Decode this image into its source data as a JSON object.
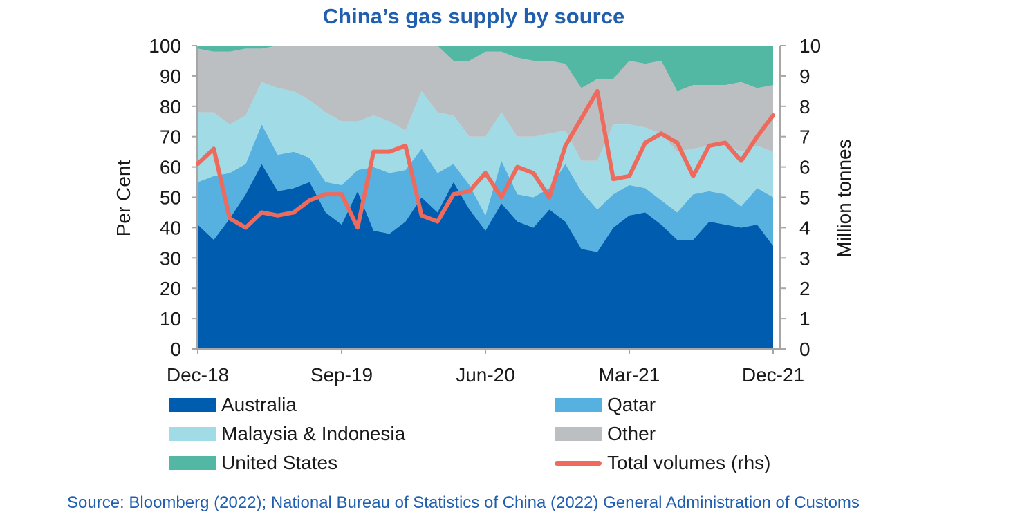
{
  "chart_data": {
    "type": "area",
    "title": "China’s gas supply by source",
    "ylabel": "Per Cent",
    "y2label": "Million tonnes",
    "ylim": [
      0,
      100
    ],
    "y2lim": [
      0,
      10
    ],
    "yticks": [
      0,
      10,
      20,
      30,
      40,
      50,
      60,
      70,
      80,
      90,
      100
    ],
    "y2ticks": [
      0,
      1,
      2,
      3,
      4,
      5,
      6,
      7,
      8,
      9,
      10
    ],
    "xtick_labels": [
      "Dec-18",
      "Sep-19",
      "Jun-20",
      "Mar-21",
      "Dec-21"
    ],
    "x": [
      "Dec-18",
      "Jan-19",
      "Feb-19",
      "Mar-19",
      "Apr-19",
      "May-19",
      "Jun-19",
      "Jul-19",
      "Aug-19",
      "Sep-19",
      "Oct-19",
      "Nov-19",
      "Dec-19",
      "Jan-20",
      "Feb-20",
      "Mar-20",
      "Apr-20",
      "May-20",
      "Jun-20",
      "Jul-20",
      "Aug-20",
      "Sep-20",
      "Oct-20",
      "Nov-20",
      "Dec-20",
      "Jan-21",
      "Feb-21",
      "Mar-21",
      "Apr-21",
      "May-21",
      "Jun-21",
      "Jul-21",
      "Aug-21",
      "Sep-21",
      "Oct-21",
      "Nov-21",
      "Dec-21"
    ],
    "series": [
      {
        "name": "Australia",
        "kind": "area",
        "color": "#005cae",
        "values": [
          41,
          36,
          43,
          51,
          61,
          52,
          53,
          55,
          45,
          41,
          52,
          39,
          38,
          42,
          50,
          45,
          55,
          46,
          39,
          48,
          42,
          40,
          46,
          42,
          33,
          32,
          40,
          44,
          45,
          41,
          36,
          36,
          42,
          41,
          40,
          41,
          34
        ]
      },
      {
        "name": "Qatar",
        "kind": "area",
        "color": "#56b0e0",
        "values": [
          14,
          21,
          15,
          10,
          13,
          12,
          12,
          8,
          10,
          13,
          7,
          21,
          20,
          17,
          16,
          13,
          6,
          8,
          5,
          14,
          9,
          10,
          7,
          19,
          19,
          14,
          11,
          10,
          8,
          8,
          9,
          15,
          10,
          10,
          7,
          12,
          16
        ]
      },
      {
        "name": "Malaysia & Indonesia",
        "kind": "area",
        "color": "#a1dbe5",
        "values": [
          23,
          21,
          16,
          16,
          14,
          22,
          20,
          19,
          23,
          21,
          16,
          17,
          17,
          13,
          19,
          20,
          16,
          16,
          26,
          16,
          19,
          20,
          18,
          11,
          10,
          16,
          23,
          20,
          20,
          22,
          20,
          15,
          15,
          16,
          18,
          14,
          15
        ]
      },
      {
        "name": "Other",
        "kind": "area",
        "color": "#bcbfc2",
        "values": [
          21,
          20,
          24,
          22,
          11,
          14,
          15,
          18,
          22,
          25,
          25,
          23,
          25,
          28,
          15,
          22,
          18,
          25,
          28,
          20,
          26,
          25,
          24,
          22,
          24,
          27,
          15,
          21,
          21,
          24,
          20,
          21,
          20,
          20,
          23,
          19,
          22
        ]
      },
      {
        "name": "United States",
        "kind": "area",
        "color": "#52b8a3",
        "values": [
          1,
          2,
          2,
          1,
          1,
          0,
          0,
          0,
          0,
          0,
          0,
          0,
          0,
          0,
          0,
          0,
          5,
          5,
          2,
          2,
          4,
          5,
          5,
          6,
          14,
          11,
          11,
          5,
          6,
          5,
          15,
          13,
          13,
          13,
          12,
          14,
          13
        ]
      },
      {
        "name": "Total volumes (rhs)",
        "kind": "line",
        "axis": "right",
        "color": "#ee6a5c",
        "values": [
          6.1,
          6.6,
          4.3,
          4.0,
          4.5,
          4.4,
          4.5,
          4.9,
          5.1,
          5.1,
          4.0,
          6.5,
          6.5,
          6.7,
          4.4,
          4.2,
          5.1,
          5.2,
          5.8,
          5.0,
          6.0,
          5.8,
          5.0,
          6.7,
          7.6,
          8.5,
          5.6,
          5.7,
          6.8,
          7.1,
          6.8,
          5.7,
          6.7,
          6.8,
          6.2,
          7.0,
          7.7
        ]
      }
    ],
    "grid": false,
    "legend_position": "bottom"
  },
  "legend": [
    {
      "label": "Australia",
      "color": "#005cae",
      "kind": "area"
    },
    {
      "label": "Qatar",
      "color": "#56b0e0",
      "kind": "area"
    },
    {
      "label": "Malaysia & Indonesia",
      "color": "#a1dbe5",
      "kind": "area"
    },
    {
      "label": "Other",
      "color": "#bcbfc2",
      "kind": "area"
    },
    {
      "label": "United States",
      "color": "#52b8a3",
      "kind": "area"
    },
    {
      "label": "Total volumes (rhs)",
      "color": "#ee6a5c",
      "kind": "line"
    }
  ],
  "source": "Source: Bloomberg (2022); National Bureau of Statistics of China (2022) General Administration of Customs"
}
